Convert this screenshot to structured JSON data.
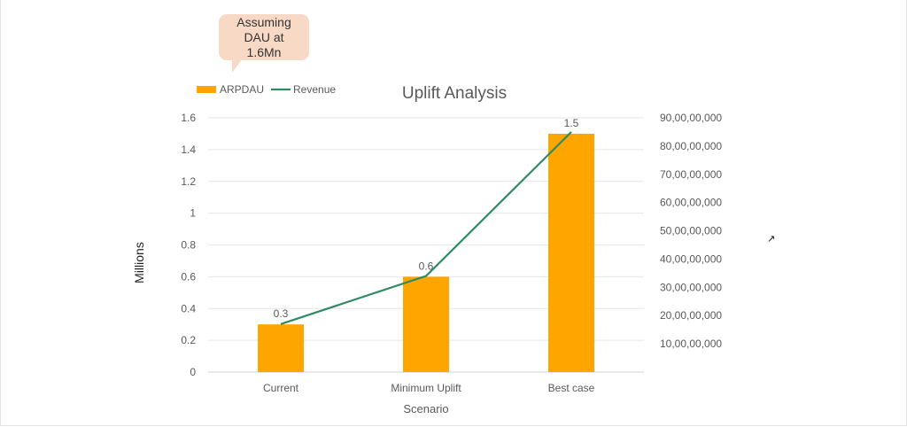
{
  "callout": {
    "text": "Assuming DAU at 1.6Mn"
  },
  "cursor": {
    "icon": "resize-cursor-icon"
  },
  "colors": {
    "bar": "#FFA500",
    "line": "#2E8B62",
    "grid": "#e6e6e6",
    "text": "#595959",
    "callout": "#F8D9C6"
  },
  "chart_data": {
    "type": "bar",
    "title": "Uplift Analysis",
    "xlabel": "Scenario",
    "ylabel": "Millions",
    "categories": [
      "Current",
      "Minimum Uplift",
      "Best case"
    ],
    "series": [
      {
        "name": "ARPDAU",
        "type": "bar",
        "axis": "left",
        "values": [
          0.3,
          0.6,
          1.5
        ],
        "data_labels": [
          "0.3",
          "0.6",
          "1.5"
        ]
      },
      {
        "name": "Revenue",
        "type": "line",
        "axis": "right",
        "values": [
          170000000,
          340000000,
          850000000
        ]
      }
    ],
    "ylim": [
      0,
      1.6
    ],
    "y_ticks": [
      "0",
      "0.2",
      "0.4",
      "0.6",
      "0.8",
      "1",
      "1.2",
      "1.4",
      "1.6"
    ],
    "y2lim": [
      0,
      900000000
    ],
    "y2_ticks": [
      "10,00,00,000",
      "20,00,00,000",
      "30,00,00,000",
      "40,00,00,000",
      "50,00,00,000",
      "60,00,00,000",
      "70,00,00,000",
      "80,00,00,000",
      "90,00,00,000"
    ],
    "grid": true,
    "legend_position": "top-left"
  }
}
